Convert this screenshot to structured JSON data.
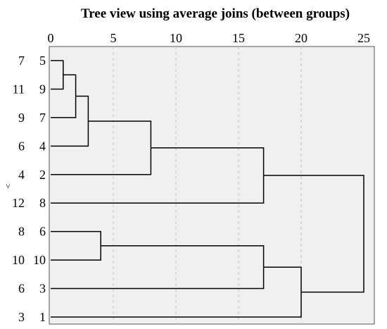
{
  "chart_data": {
    "type": "dendrogram",
    "title": "Tree view using average joins (between groups)",
    "side_mark": "˅",
    "x_ticks": [
      0,
      5,
      10,
      15,
      20,
      25
    ],
    "xlim": [
      0,
      25
    ],
    "orientation": "horizontal",
    "grid": "vertical dashed",
    "leaves": [
      {
        "id": "5",
        "outer_label": "7"
      },
      {
        "id": "9",
        "outer_label": "11"
      },
      {
        "id": "7",
        "outer_label": "9"
      },
      {
        "id": "4",
        "outer_label": "6"
      },
      {
        "id": "2",
        "outer_label": "4"
      },
      {
        "id": "8",
        "outer_label": "12"
      },
      {
        "id": "6",
        "outer_label": "8"
      },
      {
        "id": "10",
        "outer_label": "10"
      },
      {
        "id": "3",
        "outer_label": "6"
      },
      {
        "id": "1",
        "outer_label": "3"
      }
    ],
    "merges": [
      {
        "a": "5",
        "b": "9",
        "height": 1
      },
      {
        "a": "C0",
        "b": "7",
        "height": 2
      },
      {
        "a": "C1",
        "b": "4",
        "height": 3
      },
      {
        "a": "C2",
        "b": "2",
        "height": 8
      },
      {
        "a": "C3",
        "b": "8",
        "height": 17
      },
      {
        "a": "6",
        "b": "10",
        "height": 4
      },
      {
        "a": "C5",
        "b": "3",
        "height": 17
      },
      {
        "a": "C6",
        "b": "1",
        "height": 20
      },
      {
        "a": "C4",
        "b": "C7",
        "height": 25
      }
    ]
  }
}
